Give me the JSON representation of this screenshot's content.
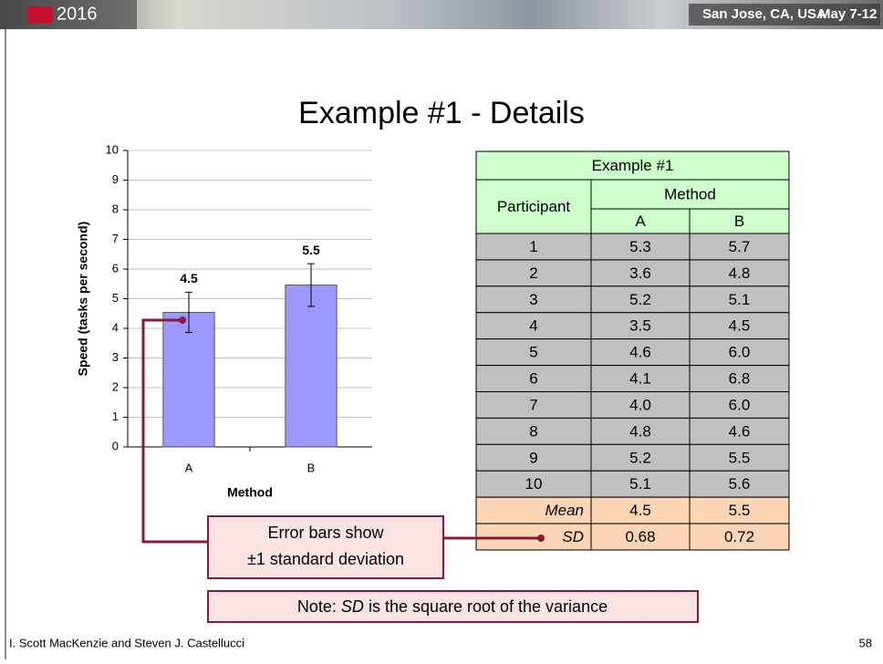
{
  "header": {
    "year": "2016",
    "location": "San Jose, CA, USA",
    "dates": "May 7-12"
  },
  "title": "Example #1 - Details",
  "chart_data": {
    "type": "bar",
    "ylabel": "Speed (tasks per second)",
    "xlabel": "Method",
    "categories": [
      "A",
      "B"
    ],
    "values": [
      4.54,
      5.46
    ],
    "value_labels": [
      "4.5",
      "5.5"
    ],
    "errors": [
      0.68,
      0.72
    ],
    "color": "#9999ff",
    "ylim": [
      0,
      10
    ],
    "yticks": [
      0,
      1,
      2,
      3,
      4,
      5,
      6,
      7,
      8,
      9,
      10
    ],
    "grid": true
  },
  "table": {
    "title": "Example #1",
    "participant_header": "Participant",
    "method_header": "Method",
    "columns": [
      "A",
      "B"
    ],
    "rows": [
      [
        "1",
        "5.3",
        "5.7"
      ],
      [
        "2",
        "3.6",
        "4.8"
      ],
      [
        "3",
        "5.2",
        "5.1"
      ],
      [
        "4",
        "3.5",
        "4.5"
      ],
      [
        "5",
        "4.6",
        "6.0"
      ],
      [
        "6",
        "4.1",
        "6.8"
      ],
      [
        "7",
        "4.0",
        "6.0"
      ],
      [
        "8",
        "4.8",
        "4.6"
      ],
      [
        "9",
        "5.2",
        "5.5"
      ],
      [
        "10",
        "5.1",
        "5.6"
      ]
    ],
    "summary": [
      [
        "Mean",
        "4.5",
        "5.5"
      ],
      [
        "SD",
        "0.68",
        "0.72"
      ]
    ]
  },
  "callout": [
    "Error bars show",
    "±1 standard deviation"
  ],
  "note": [
    "Note: ",
    "SD",
    " is the square root of the variance"
  ],
  "footer": {
    "authors": "I. Scott MacKenzie and Steven J. Castellucci",
    "page": "58"
  }
}
